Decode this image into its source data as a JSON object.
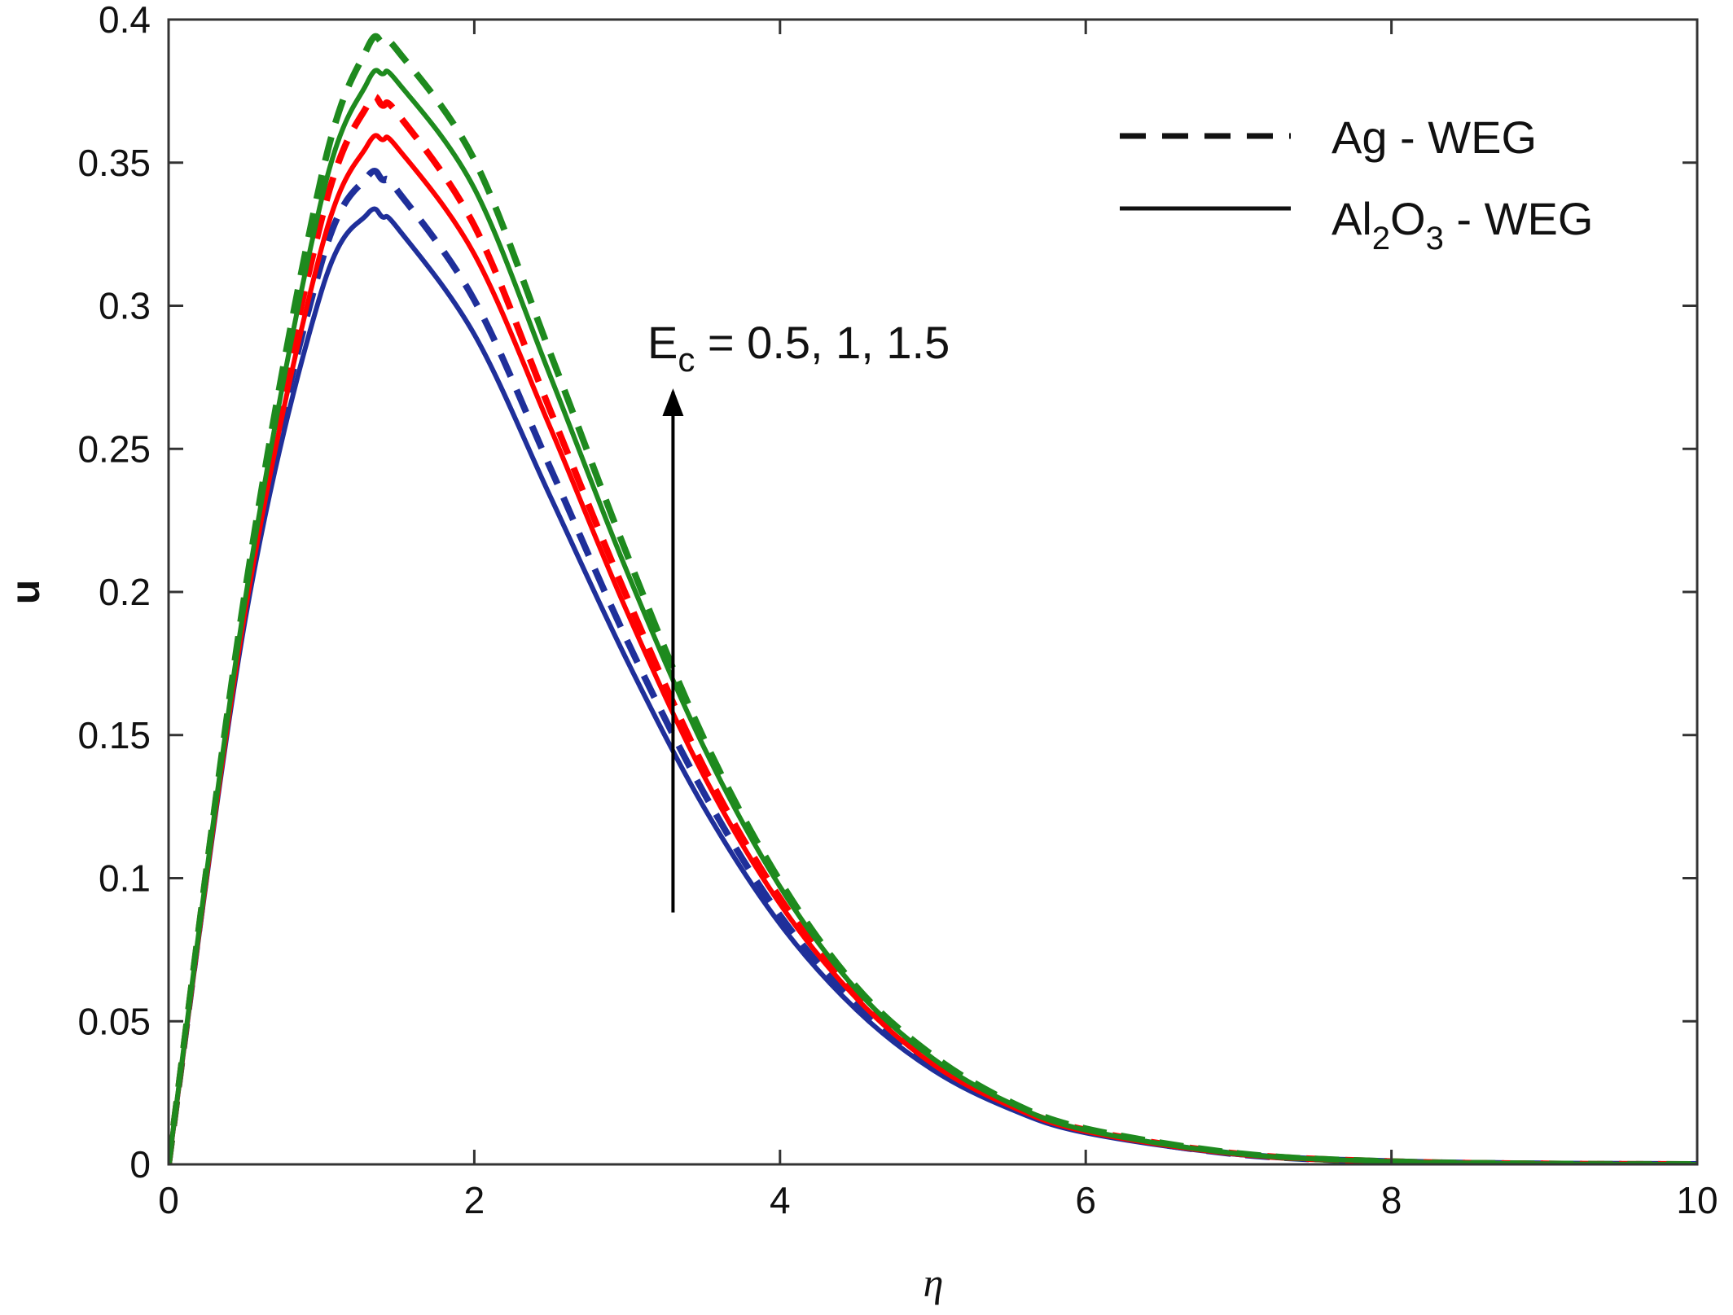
{
  "chart_data": {
    "type": "line",
    "xlabel": "η",
    "ylabel": "u",
    "xlim": [
      0,
      10
    ],
    "ylim": [
      0,
      0.4
    ],
    "xticks": [
      0,
      2,
      4,
      6,
      8,
      10
    ],
    "xtick_labels": [
      "0",
      "2",
      "4",
      "6",
      "8",
      "10"
    ],
    "yticks": [
      0,
      0.05,
      0.1,
      0.15,
      0.2,
      0.25,
      0.3,
      0.35,
      0.4
    ],
    "ytick_labels": [
      "0",
      "0.05",
      "0.1",
      "0.15",
      "0.2",
      "0.25",
      "0.3",
      "0.35",
      "0.4"
    ],
    "grid": false,
    "legend": {
      "placement": "top-right",
      "entries": [
        {
          "style": "dashed",
          "label": "Ag - WEG"
        },
        {
          "style": "solid",
          "label_parts": [
            "Al",
            "2",
            "O",
            "3",
            " - WEG"
          ]
        }
      ]
    },
    "annotation": {
      "parts": [
        "E",
        "c",
        " = 0.5, 1, 1.5"
      ],
      "arrow_from": [
        3.3,
        0.088
      ],
      "arrow_to": [
        3.3,
        0.27
      ]
    },
    "x": [
      0,
      0.5,
      1,
      1.3,
      1.4,
      1.5,
      2,
      2.5,
      3,
      3.5,
      4,
      4.5,
      5,
      5.5,
      6,
      7,
      8,
      9,
      10
    ],
    "series": [
      {
        "fluid": "Ag - WEG",
        "Ec": 0.5,
        "style": "dashed",
        "color": "#1f2f9a",
        "values": [
          0,
          0.195,
          0.315,
          0.345,
          0.344,
          0.34,
          0.302,
          0.243,
          0.183,
          0.13,
          0.087,
          0.056,
          0.034,
          0.02,
          0.0115,
          0.0035,
          0.001,
          0.0002,
          0
        ]
      },
      {
        "fluid": "Ag - WEG",
        "Ec": 1,
        "style": "dashed",
        "color": "#ff0000",
        "values": [
          0,
          0.198,
          0.33,
          0.37,
          0.37,
          0.367,
          0.328,
          0.263,
          0.198,
          0.139,
          0.093,
          0.059,
          0.036,
          0.021,
          0.012,
          0.0037,
          0.001,
          0.0002,
          0
        ]
      },
      {
        "fluid": "Ag - WEG",
        "Ec": 1.5,
        "style": "dashed",
        "color": "#1e8a1e",
        "values": [
          0,
          0.2,
          0.345,
          0.39,
          0.392,
          0.389,
          0.351,
          0.283,
          0.213,
          0.149,
          0.099,
          0.062,
          0.038,
          0.022,
          0.0125,
          0.0038,
          0.001,
          0.0002,
          0
        ]
      },
      {
        "fluid": "Al2O3 - WEG",
        "Ec": 0.5,
        "style": "solid",
        "color": "#1f2f9a",
        "values": [
          0,
          0.19,
          0.305,
          0.332,
          0.331,
          0.327,
          0.29,
          0.233,
          0.176,
          0.125,
          0.084,
          0.054,
          0.033,
          0.0195,
          0.011,
          0.0034,
          0.001,
          0.0002,
          0
        ]
      },
      {
        "fluid": "Al2O3 - WEG",
        "Ec": 1,
        "style": "solid",
        "color": "#ff0000",
        "values": [
          0,
          0.193,
          0.32,
          0.356,
          0.358,
          0.355,
          0.318,
          0.257,
          0.193,
          0.136,
          0.091,
          0.058,
          0.035,
          0.0205,
          0.0115,
          0.0035,
          0.001,
          0.0002,
          0
        ]
      },
      {
        "fluid": "Al2O3 - WEG",
        "Ec": 1.5,
        "style": "solid",
        "color": "#1e8a1e",
        "values": [
          0,
          0.197,
          0.337,
          0.378,
          0.381,
          0.378,
          0.341,
          0.275,
          0.207,
          0.146,
          0.097,
          0.061,
          0.037,
          0.0215,
          0.012,
          0.0037,
          0.001,
          0.0002,
          0
        ]
      }
    ]
  }
}
